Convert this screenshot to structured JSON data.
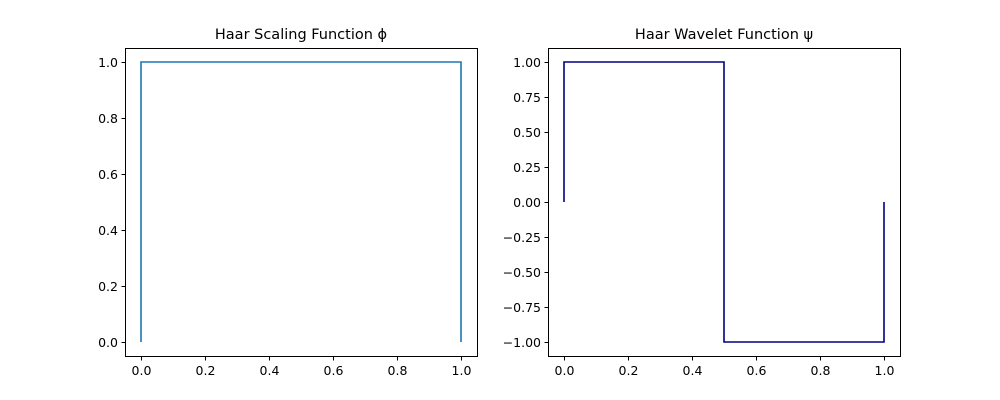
{
  "chart_data": [
    {
      "type": "line",
      "title": "Haar Scaling Function ϕ",
      "xlabel": "",
      "ylabel": "",
      "xlim": [
        -0.05,
        1.05
      ],
      "ylim": [
        -0.05,
        1.05
      ],
      "xticks": [
        0.0,
        0.2,
        0.4,
        0.6,
        0.8,
        1.0
      ],
      "xtick_labels": [
        "0.0",
        "0.2",
        "0.4",
        "0.6",
        "0.8",
        "1.0"
      ],
      "yticks": [
        0.0,
        0.2,
        0.4,
        0.6,
        0.8,
        1.0
      ],
      "ytick_labels": [
        "0.0",
        "0.2",
        "0.4",
        "0.6",
        "0.8",
        "1.0"
      ],
      "grid": false,
      "series": [
        {
          "color": "#1f77b4",
          "x": [
            0.0,
            0.0,
            1.0,
            1.0
          ],
          "y": [
            0.0,
            1.0,
            1.0,
            0.0
          ]
        }
      ]
    },
    {
      "type": "line",
      "title": "Haar Wavelet Function ψ",
      "xlabel": "",
      "ylabel": "",
      "xlim": [
        -0.05,
        1.05
      ],
      "ylim": [
        -1.1,
        1.1
      ],
      "xticks": [
        0.0,
        0.2,
        0.4,
        0.6,
        0.8,
        1.0
      ],
      "xtick_labels": [
        "0.0",
        "0.2",
        "0.4",
        "0.6",
        "0.8",
        "1.0"
      ],
      "yticks": [
        -1.0,
        -0.75,
        -0.5,
        -0.25,
        0.0,
        0.25,
        0.5,
        0.75,
        1.0
      ],
      "ytick_labels": [
        "−1.00",
        "−0.75",
        "−0.50",
        "−0.25",
        "0.00",
        "0.25",
        "0.50",
        "0.75",
        "1.00"
      ],
      "grid": false,
      "series": [
        {
          "color": "#000080",
          "x": [
            0.0,
            0.0,
            0.5,
            0.5,
            1.0,
            1.0
          ],
          "y": [
            0.0,
            1.0,
            1.0,
            -1.0,
            -1.0,
            0.0
          ]
        }
      ]
    }
  ]
}
